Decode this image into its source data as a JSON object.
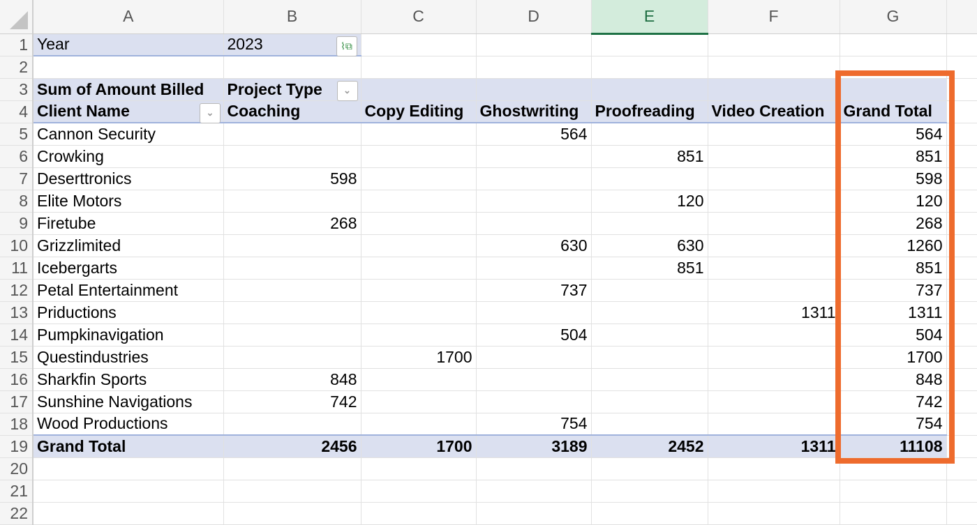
{
  "columns": [
    "A",
    "B",
    "C",
    "D",
    "E",
    "F",
    "G",
    ""
  ],
  "selected_column": "E",
  "filter": {
    "label": "Year",
    "value": "2023"
  },
  "pivot": {
    "value_label": "Sum of Amount Billed",
    "column_field": "Project Type",
    "row_field": "Client Name",
    "headers": [
      "Coaching",
      "Copy Editing",
      "Ghostwriting",
      "Proofreading",
      "Video Creation",
      "Grand Total"
    ],
    "rows": [
      {
        "name": "Cannon Security",
        "values": [
          "",
          "",
          "564",
          "",
          "",
          "564"
        ]
      },
      {
        "name": "Crowking",
        "values": [
          "",
          "",
          "",
          "851",
          "",
          "851"
        ]
      },
      {
        "name": "Deserttronics",
        "values": [
          "598",
          "",
          "",
          "",
          "",
          "598"
        ]
      },
      {
        "name": "Elite Motors",
        "values": [
          "",
          "",
          "",
          "120",
          "",
          "120"
        ]
      },
      {
        "name": "Firetube",
        "values": [
          "268",
          "",
          "",
          "",
          "",
          "268"
        ]
      },
      {
        "name": "Grizzlimited",
        "values": [
          "",
          "",
          "630",
          "630",
          "",
          "1260"
        ]
      },
      {
        "name": "Icebergarts",
        "values": [
          "",
          "",
          "",
          "851",
          "",
          "851"
        ]
      },
      {
        "name": "Petal Entertainment",
        "values": [
          "",
          "",
          "737",
          "",
          "",
          "737"
        ]
      },
      {
        "name": "Priductions",
        "values": [
          "",
          "",
          "",
          "",
          "1311",
          "1311"
        ]
      },
      {
        "name": "Pumpkinavigation",
        "values": [
          "",
          "",
          "504",
          "",
          "",
          "504"
        ]
      },
      {
        "name": "Questindustries",
        "values": [
          "",
          "1700",
          "",
          "",
          "",
          "1700"
        ]
      },
      {
        "name": "Sharkfin Sports",
        "values": [
          "848",
          "",
          "",
          "",
          "",
          "848"
        ]
      },
      {
        "name": "Sunshine Navigations",
        "values": [
          "742",
          "",
          "",
          "",
          "",
          "742"
        ]
      },
      {
        "name": "Wood Productions",
        "values": [
          "",
          "",
          "754",
          "",
          "",
          "754"
        ]
      }
    ],
    "grand_total": {
      "label": "Grand Total",
      "values": [
        "2456",
        "1700",
        "3189",
        "2452",
        "1311",
        "11108"
      ]
    }
  },
  "row_numbers": [
    "1",
    "2",
    "3",
    "4",
    "5",
    "6",
    "7",
    "8",
    "9",
    "10",
    "11",
    "12",
    "13",
    "14",
    "15",
    "16",
    "17",
    "18",
    "19",
    "20",
    "21",
    "22"
  ],
  "highlight_color": "#ee6b2d",
  "pivot_band_color": "#dbe0f0"
}
